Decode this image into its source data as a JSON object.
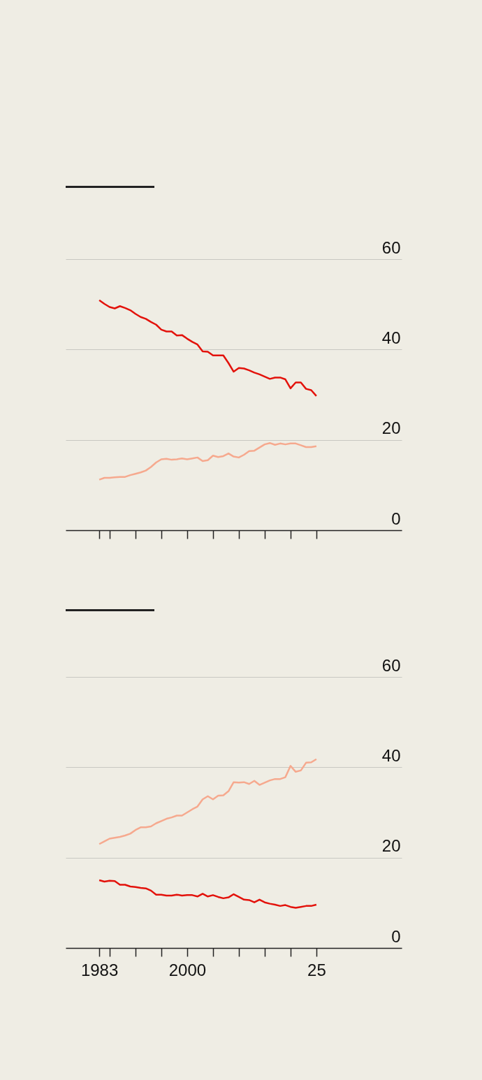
{
  "chart_data": [
    {
      "type": "line",
      "x": [
        1983,
        1984,
        1985,
        1986,
        1987,
        1988,
        1989,
        1990,
        1991,
        1992,
        1993,
        1994,
        1995,
        1996,
        1997,
        1998,
        1999,
        2000,
        2001,
        2002,
        2003,
        2004,
        2005,
        2006,
        2007,
        2008,
        2009,
        2010,
        2011,
        2012,
        2013,
        2014,
        2015,
        2016,
        2017,
        2018,
        2019,
        2020,
        2021,
        2022,
        2023,
        2024,
        2025
      ],
      "series": [
        {
          "color": "#e3120b",
          "values": [
            50.9,
            50.1,
            49.4,
            49.1,
            49.6,
            49.2,
            48.7,
            47.9,
            47.2,
            46.8,
            46.1,
            45.5,
            44.4,
            44.0,
            44.0,
            43.1,
            43.2,
            42.4,
            41.7,
            41.1,
            39.6,
            39.5,
            38.7,
            38.7,
            38.7,
            37.0,
            35.1,
            35.9,
            35.8,
            35.4,
            34.9,
            34.5,
            34.0,
            33.5,
            33.8,
            33.8,
            33.4,
            31.4,
            32.7,
            32.7,
            31.3,
            31.0,
            29.7
          ]
        },
        {
          "color": "#f6a98e",
          "values": [
            11.2,
            11.6,
            11.6,
            11.7,
            11.8,
            11.8,
            12.2,
            12.5,
            12.8,
            13.2,
            14.0,
            15.0,
            15.7,
            15.8,
            15.6,
            15.7,
            15.9,
            15.7,
            15.9,
            16.1,
            15.3,
            15.5,
            16.5,
            16.2,
            16.4,
            17.0,
            16.3,
            16.1,
            16.7,
            17.5,
            17.6,
            18.3,
            19.0,
            19.3,
            18.9,
            19.2,
            19.0,
            19.2,
            19.2,
            18.8,
            18.4,
            18.4,
            18.6
          ]
        }
      ],
      "xlim": [
        1976.5,
        2041.5
      ],
      "xticks": [
        {
          "value": 1983,
          "label": null
        },
        {
          "value": 1985,
          "label": null
        },
        {
          "value": 1990,
          "label": null
        },
        {
          "value": 1995,
          "label": null
        },
        {
          "value": 2000,
          "label": null
        },
        {
          "value": 2005,
          "label": null
        },
        {
          "value": 2010,
          "label": null
        },
        {
          "value": 2015,
          "label": null
        },
        {
          "value": 2020,
          "label": null
        },
        {
          "value": 2025,
          "label": null
        }
      ],
      "ylim": [
        0,
        60
      ],
      "yticks": [
        0,
        20,
        40,
        60
      ],
      "grid": "y",
      "tick_labels": "y"
    },
    {
      "type": "line",
      "x": [
        1983,
        1984,
        1985,
        1986,
        1987,
        1988,
        1989,
        1990,
        1991,
        1992,
        1993,
        1994,
        1995,
        1996,
        1997,
        1998,
        1999,
        2000,
        2001,
        2002,
        2003,
        2004,
        2005,
        2006,
        2007,
        2008,
        2009,
        2010,
        2011,
        2012,
        2013,
        2014,
        2015,
        2016,
        2017,
        2018,
        2019,
        2020,
        2021,
        2022,
        2023,
        2024,
        2025
      ],
      "series": [
        {
          "color": "#e3120b",
          "values": [
            15.0,
            14.7,
            14.9,
            14.8,
            14.0,
            14.0,
            13.6,
            13.5,
            13.3,
            13.2,
            12.7,
            11.8,
            11.8,
            11.6,
            11.6,
            11.8,
            11.6,
            11.7,
            11.7,
            11.4,
            12.0,
            11.4,
            11.7,
            11.3,
            11.0,
            11.2,
            11.9,
            11.3,
            10.7,
            10.6,
            10.1,
            10.7,
            10.1,
            9.8,
            9.6,
            9.3,
            9.5,
            9.1,
            8.9,
            9.1,
            9.3,
            9.3,
            9.6
          ]
        },
        {
          "color": "#f6a98e",
          "values": [
            23.0,
            23.6,
            24.2,
            24.4,
            24.6,
            24.9,
            25.3,
            26.1,
            26.7,
            26.7,
            26.9,
            27.6,
            28.1,
            28.6,
            28.9,
            29.3,
            29.3,
            30.0,
            30.7,
            31.3,
            32.9,
            33.6,
            32.9,
            33.7,
            33.8,
            34.7,
            36.7,
            36.6,
            36.7,
            36.3,
            37.0,
            36.1,
            36.6,
            37.1,
            37.4,
            37.4,
            37.8,
            40.3,
            39.0,
            39.3,
            41.0,
            41.1,
            41.8
          ]
        }
      ],
      "xlim": [
        1976.5,
        2041.5
      ],
      "xticks": [
        {
          "value": 1983,
          "label": "1983"
        },
        {
          "value": 1985,
          "label": null
        },
        {
          "value": 1990,
          "label": null
        },
        {
          "value": 1995,
          "label": null
        },
        {
          "value": 2000,
          "label": "2000"
        },
        {
          "value": 2005,
          "label": null
        },
        {
          "value": 2010,
          "label": null
        },
        {
          "value": 2015,
          "label": null
        },
        {
          "value": 2020,
          "label": null
        },
        {
          "value": 2025,
          "label": "25"
        }
      ],
      "ylim": [
        0,
        60
      ],
      "yticks": [
        0,
        20,
        40,
        60
      ],
      "grid": "y"
    }
  ]
}
